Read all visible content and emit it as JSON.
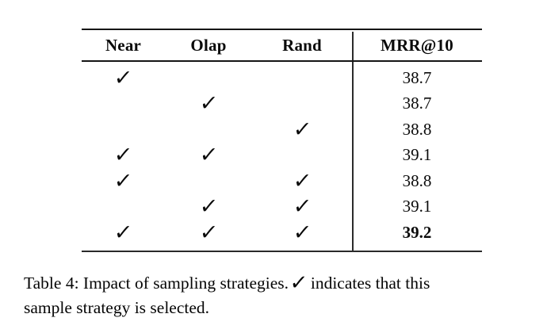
{
  "table": {
    "columns": [
      "Near",
      "Olap",
      "Rand",
      "MRR@10"
    ],
    "check_glyph": "✓",
    "rows": [
      {
        "checks": [
          true,
          false,
          false
        ],
        "mrr": "38.7",
        "bold": false
      },
      {
        "checks": [
          false,
          true,
          false
        ],
        "mrr": "38.7",
        "bold": false
      },
      {
        "checks": [
          false,
          false,
          true
        ],
        "mrr": "38.8",
        "bold": false
      },
      {
        "checks": [
          true,
          true,
          false
        ],
        "mrr": "39.1",
        "bold": false
      },
      {
        "checks": [
          true,
          false,
          true
        ],
        "mrr": "38.8",
        "bold": false
      },
      {
        "checks": [
          false,
          true,
          true
        ],
        "mrr": "39.1",
        "bold": false
      },
      {
        "checks": [
          true,
          true,
          true
        ],
        "mrr": "39.2",
        "bold": true
      }
    ]
  },
  "caption": {
    "line1_before": "Table 4: Impact of sampling strategies.",
    "check_glyph": "✓",
    "line1_after": "indicates that this",
    "line2": "sample strategy is selected."
  }
}
